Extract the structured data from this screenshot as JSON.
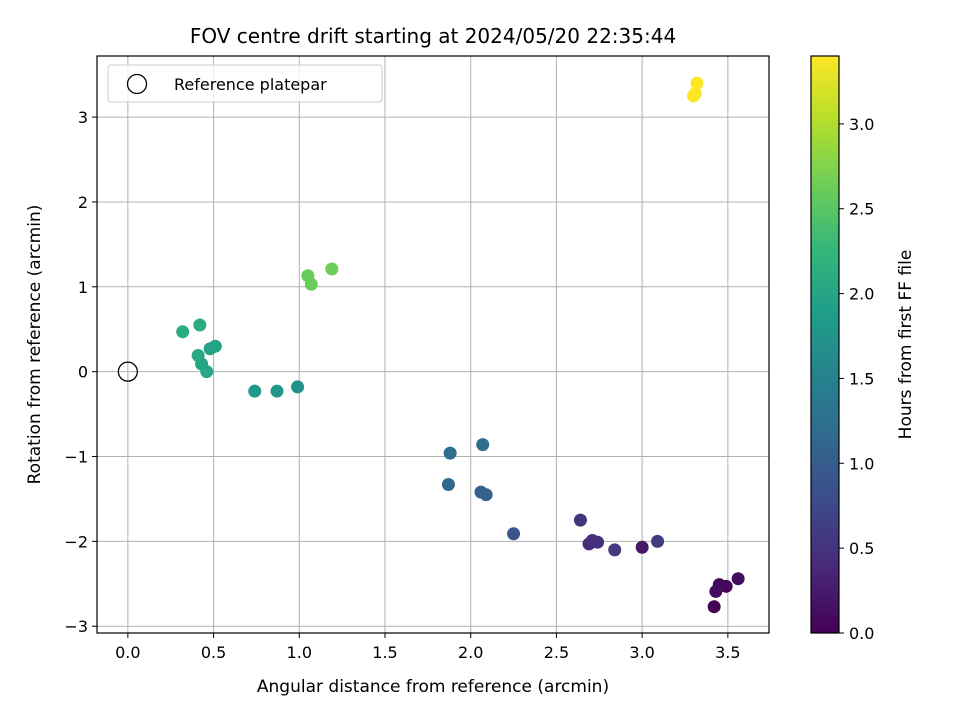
{
  "chart_data": {
    "type": "scatter",
    "title": "FOV centre drift starting at 2024/05/20 22:35:44",
    "xlabel": "Angular distance from reference (arcmin)",
    "ylabel": "Rotation from reference (arcmin)",
    "xlim": [
      -0.18,
      3.74
    ],
    "ylim": [
      -3.08,
      3.72
    ],
    "xticks": [
      0.0,
      0.5,
      1.0,
      1.5,
      2.0,
      2.5,
      3.0,
      3.5
    ],
    "yticks": [
      -3,
      -2,
      -1,
      0,
      1,
      2,
      3
    ],
    "grid": true,
    "legend": {
      "placement": "top-left",
      "entries": [
        "Reference platepar"
      ]
    },
    "reference_point": {
      "x": 0.0,
      "y": 0.0
    },
    "colorbar": {
      "label": "Hours from first FF file",
      "range": [
        0.0,
        3.4
      ],
      "ticks": [
        0.0,
        0.5,
        1.0,
        1.5,
        2.0,
        2.5,
        3.0
      ],
      "colormap": "viridis"
    },
    "points": [
      {
        "x": 3.42,
        "y": -2.77,
        "hours": 0.02
      },
      {
        "x": 3.49,
        "y": -2.53,
        "hours": 0.05
      },
      {
        "x": 3.45,
        "y": -2.51,
        "hours": 0.08
      },
      {
        "x": 3.56,
        "y": -2.44,
        "hours": 0.1
      },
      {
        "x": 3.43,
        "y": -2.59,
        "hours": 0.12
      },
      {
        "x": 3.0,
        "y": -2.07,
        "hours": 0.2
      },
      {
        "x": 2.69,
        "y": -2.03,
        "hours": 0.42
      },
      {
        "x": 2.71,
        "y": -1.99,
        "hours": 0.45
      },
      {
        "x": 2.74,
        "y": -2.01,
        "hours": 0.48
      },
      {
        "x": 2.64,
        "y": -1.75,
        "hours": 0.52
      },
      {
        "x": 2.84,
        "y": -2.1,
        "hours": 0.58
      },
      {
        "x": 3.09,
        "y": -2.0,
        "hours": 0.62
      },
      {
        "x": 2.25,
        "y": -1.91,
        "hours": 0.88
      },
      {
        "x": 2.06,
        "y": -1.42,
        "hours": 1.02
      },
      {
        "x": 2.09,
        "y": -1.45,
        "hours": 1.05
      },
      {
        "x": 1.87,
        "y": -1.33,
        "hours": 1.18
      },
      {
        "x": 1.88,
        "y": -0.96,
        "hours": 1.22
      },
      {
        "x": 2.07,
        "y": -0.86,
        "hours": 1.25
      },
      {
        "x": 0.99,
        "y": -0.18,
        "hours": 1.72
      },
      {
        "x": 0.87,
        "y": -0.23,
        "hours": 1.78
      },
      {
        "x": 0.74,
        "y": -0.23,
        "hours": 1.82
      },
      {
        "x": 0.51,
        "y": 0.3,
        "hours": 1.95
      },
      {
        "x": 0.48,
        "y": 0.27,
        "hours": 1.97
      },
      {
        "x": 0.43,
        "y": 0.09,
        "hours": 2.0
      },
      {
        "x": 0.46,
        "y": 0.0,
        "hours": 2.02
      },
      {
        "x": 0.41,
        "y": 0.19,
        "hours": 2.05
      },
      {
        "x": 0.32,
        "y": 0.47,
        "hours": 2.08
      },
      {
        "x": 0.42,
        "y": 0.55,
        "hours": 2.1
      },
      {
        "x": 1.05,
        "y": 1.13,
        "hours": 2.6
      },
      {
        "x": 1.07,
        "y": 1.03,
        "hours": 2.62
      },
      {
        "x": 1.19,
        "y": 1.21,
        "hours": 2.65
      },
      {
        "x": 3.3,
        "y": 3.25,
        "hours": 3.38
      },
      {
        "x": 3.31,
        "y": 3.28,
        "hours": 3.39
      },
      {
        "x": 3.32,
        "y": 3.4,
        "hours": 3.4
      }
    ]
  }
}
